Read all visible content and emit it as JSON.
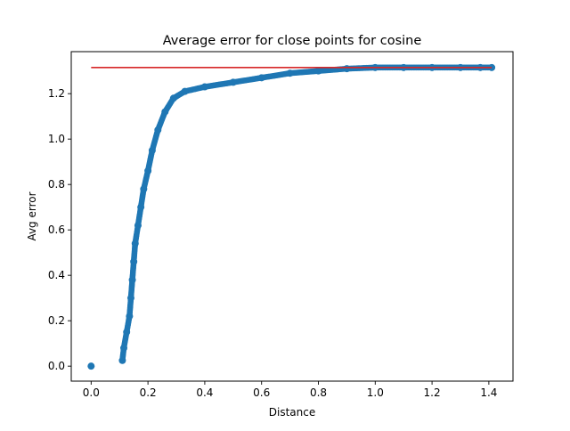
{
  "chart_data": {
    "type": "scatter",
    "title": "Average error for close points for cosine",
    "xlabel": "Distance",
    "ylabel": "Avg error",
    "xlim": [
      -0.07,
      1.485
    ],
    "ylim": [
      -0.066,
      1.385
    ],
    "xticks": [
      0.0,
      0.2,
      0.4,
      0.6,
      0.8,
      1.0,
      1.2,
      1.4
    ],
    "xtick_labels": [
      "0.0",
      "0.2",
      "0.4",
      "0.6",
      "0.8",
      "1.0",
      "1.2",
      "1.4"
    ],
    "yticks": [
      0.0,
      0.2,
      0.4,
      0.6,
      0.8,
      1.0,
      1.2
    ],
    "ytick_labels": [
      "0.0",
      "0.2",
      "0.4",
      "0.6",
      "0.8",
      "1.0",
      "1.2"
    ],
    "grid": false,
    "colors": {
      "points": "#1f77b4",
      "reference_line": "#d62728"
    },
    "series": [
      {
        "values": [
          {
            "x": 0.0,
            "y": 0.0
          },
          {
            "x": 0.11,
            "y": 0.025
          },
          {
            "x": 0.115,
            "y": 0.08
          },
          {
            "x": 0.125,
            "y": 0.15
          },
          {
            "x": 0.135,
            "y": 0.22
          },
          {
            "x": 0.14,
            "y": 0.3
          },
          {
            "x": 0.145,
            "y": 0.38
          },
          {
            "x": 0.15,
            "y": 0.46
          },
          {
            "x": 0.155,
            "y": 0.54
          },
          {
            "x": 0.165,
            "y": 0.62
          },
          {
            "x": 0.175,
            "y": 0.7
          },
          {
            "x": 0.185,
            "y": 0.78
          },
          {
            "x": 0.2,
            "y": 0.86
          },
          {
            "x": 0.215,
            "y": 0.95
          },
          {
            "x": 0.235,
            "y": 1.04
          },
          {
            "x": 0.26,
            "y": 1.12
          },
          {
            "x": 0.29,
            "y": 1.18
          },
          {
            "x": 0.33,
            "y": 1.21
          },
          {
            "x": 0.4,
            "y": 1.23
          },
          {
            "x": 0.5,
            "y": 1.25
          },
          {
            "x": 0.6,
            "y": 1.27
          },
          {
            "x": 0.7,
            "y": 1.29
          },
          {
            "x": 0.8,
            "y": 1.3
          },
          {
            "x": 0.9,
            "y": 1.31
          },
          {
            "x": 1.0,
            "y": 1.315
          },
          {
            "x": 1.1,
            "y": 1.315
          },
          {
            "x": 1.2,
            "y": 1.315
          },
          {
            "x": 1.3,
            "y": 1.315
          },
          {
            "x": 1.37,
            "y": 1.315
          },
          {
            "x": 1.41,
            "y": 1.315
          }
        ]
      },
      {
        "type": "line",
        "values": [
          {
            "x": 0.0,
            "y": 1.315
          },
          {
            "x": 1.41,
            "y": 1.315
          }
        ]
      }
    ]
  }
}
